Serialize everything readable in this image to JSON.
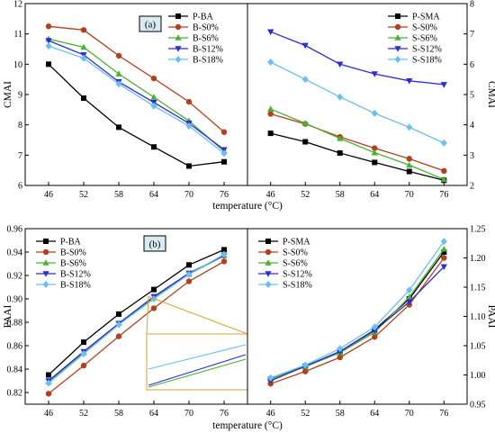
{
  "chart_data": [
    {
      "type": "line",
      "panel": "top-left",
      "badge": "(a)",
      "x": [
        46,
        52,
        58,
        64,
        70,
        76
      ],
      "ylabel": "CMAI",
      "ylim": [
        6,
        12
      ],
      "yticks": [
        6,
        7,
        8,
        9,
        10,
        11,
        12
      ],
      "legend_position": "top-right",
      "series": [
        {
          "name": "P-BA",
          "color": "#000000",
          "marker": "square",
          "values": [
            10.0,
            8.88,
            7.92,
            7.27,
            6.64,
            6.78
          ]
        },
        {
          "name": "B-S0%",
          "color": "#b2401e",
          "marker": "circle",
          "values": [
            11.25,
            11.13,
            10.28,
            9.53,
            8.76,
            7.76
          ]
        },
        {
          "name": "B-S6%",
          "color": "#47b230",
          "marker": "triangle",
          "values": [
            10.83,
            10.56,
            9.68,
            8.91,
            8.13,
            7.13
          ]
        },
        {
          "name": "B-S12%",
          "color": "#2b2bd9",
          "marker": "tri-down",
          "values": [
            10.78,
            10.31,
            9.42,
            8.74,
            8.05,
            7.18
          ]
        },
        {
          "name": "B-S18%",
          "color": "#6ebff0",
          "marker": "diamond",
          "values": [
            10.6,
            10.2,
            9.35,
            8.62,
            7.96,
            7.06
          ]
        }
      ]
    },
    {
      "type": "line",
      "panel": "top-right",
      "x": [
        46,
        52,
        58,
        64,
        70,
        76
      ],
      "ylabel": "CMAI",
      "ylim": [
        2,
        8
      ],
      "yticks": [
        2,
        3,
        4,
        5,
        6,
        7,
        8
      ],
      "legend_position": "top-right",
      "series": [
        {
          "name": "P-SMA",
          "color": "#000000",
          "marker": "square",
          "values": [
            3.72,
            3.44,
            3.07,
            2.76,
            2.46,
            2.17
          ]
        },
        {
          "name": "S-S0%",
          "color": "#b2401e",
          "marker": "circle",
          "values": [
            4.36,
            4.03,
            3.6,
            3.23,
            2.88,
            2.48
          ]
        },
        {
          "name": "S-S6%",
          "color": "#47b230",
          "marker": "triangle",
          "values": [
            4.52,
            4.05,
            3.55,
            3.08,
            2.67,
            2.2
          ]
        },
        {
          "name": "S-S12%",
          "color": "#2b2bd9",
          "marker": "tri-down",
          "values": [
            7.07,
            6.62,
            6.0,
            5.68,
            5.45,
            5.33
          ]
        },
        {
          "name": "S-S18%",
          "color": "#6ebff0",
          "marker": "diamond",
          "values": [
            6.07,
            5.5,
            4.92,
            4.38,
            3.92,
            3.4
          ]
        }
      ]
    },
    {
      "type": "line",
      "panel": "bottom-left",
      "badge": "(b)",
      "x": [
        46,
        52,
        58,
        64,
        70,
        76
      ],
      "ylabel": "PAAI",
      "ylim": [
        0.81,
        0.96
      ],
      "yticks": [
        0.82,
        0.84,
        0.86,
        0.88,
        0.9,
        0.92,
        0.94,
        0.96
      ],
      "legend_position": "top-left",
      "inset_zoom": true,
      "series": [
        {
          "name": "P-BA",
          "color": "#000000",
          "marker": "square",
          "values": [
            0.835,
            0.863,
            0.887,
            0.908,
            0.929,
            0.942
          ]
        },
        {
          "name": "B-S0%",
          "color": "#b2401e",
          "marker": "circle",
          "values": [
            0.819,
            0.843,
            0.868,
            0.892,
            0.915,
            0.932
          ]
        },
        {
          "name": "B-S6%",
          "color": "#47b230",
          "marker": "triangle",
          "values": [
            0.829,
            0.854,
            0.879,
            0.901,
            0.921,
            0.937
          ]
        },
        {
          "name": "B-S12%",
          "color": "#2b2bd9",
          "marker": "tri-down",
          "values": [
            0.83,
            0.855,
            0.879,
            0.902,
            0.922,
            0.937
          ]
        },
        {
          "name": "B-S18%",
          "color": "#6ebff0",
          "marker": "diamond",
          "values": [
            0.828,
            0.853,
            0.878,
            0.9,
            0.921,
            0.938
          ]
        }
      ]
    },
    {
      "type": "line",
      "panel": "bottom-right",
      "x": [
        46,
        52,
        58,
        64,
        70,
        76
      ],
      "ylabel": "PAAI",
      "ylim": [
        0.95,
        1.25
      ],
      "yticks": [
        0.95,
        1.0,
        1.05,
        1.1,
        1.15,
        1.2,
        1.25
      ],
      "legend_position": "top-left",
      "series": [
        {
          "name": "P-SMA",
          "color": "#000000",
          "marker": "square",
          "values": [
            0.993,
            1.015,
            1.04,
            1.077,
            1.13,
            1.21
          ]
        },
        {
          "name": "S-S0%",
          "color": "#b2401e",
          "marker": "circle",
          "values": [
            0.985,
            1.006,
            1.03,
            1.065,
            1.12,
            1.2
          ]
        },
        {
          "name": "S-S6%",
          "color": "#47b230",
          "marker": "triangle",
          "values": [
            0.993,
            1.014,
            1.038,
            1.073,
            1.133,
            1.215
          ]
        },
        {
          "name": "S-S12%",
          "color": "#2b2bd9",
          "marker": "tri-down",
          "values": [
            0.99,
            1.015,
            1.04,
            1.076,
            1.125,
            1.185
          ]
        },
        {
          "name": "S-S18%",
          "color": "#6ebff0",
          "marker": "diamond",
          "values": [
            0.995,
            1.017,
            1.045,
            1.082,
            1.145,
            1.228
          ]
        }
      ]
    }
  ],
  "xticks": [
    46,
    52,
    58,
    64,
    70,
    76
  ],
  "xlabel": "temperature (°C)",
  "xlim": [
    42,
    80
  ]
}
